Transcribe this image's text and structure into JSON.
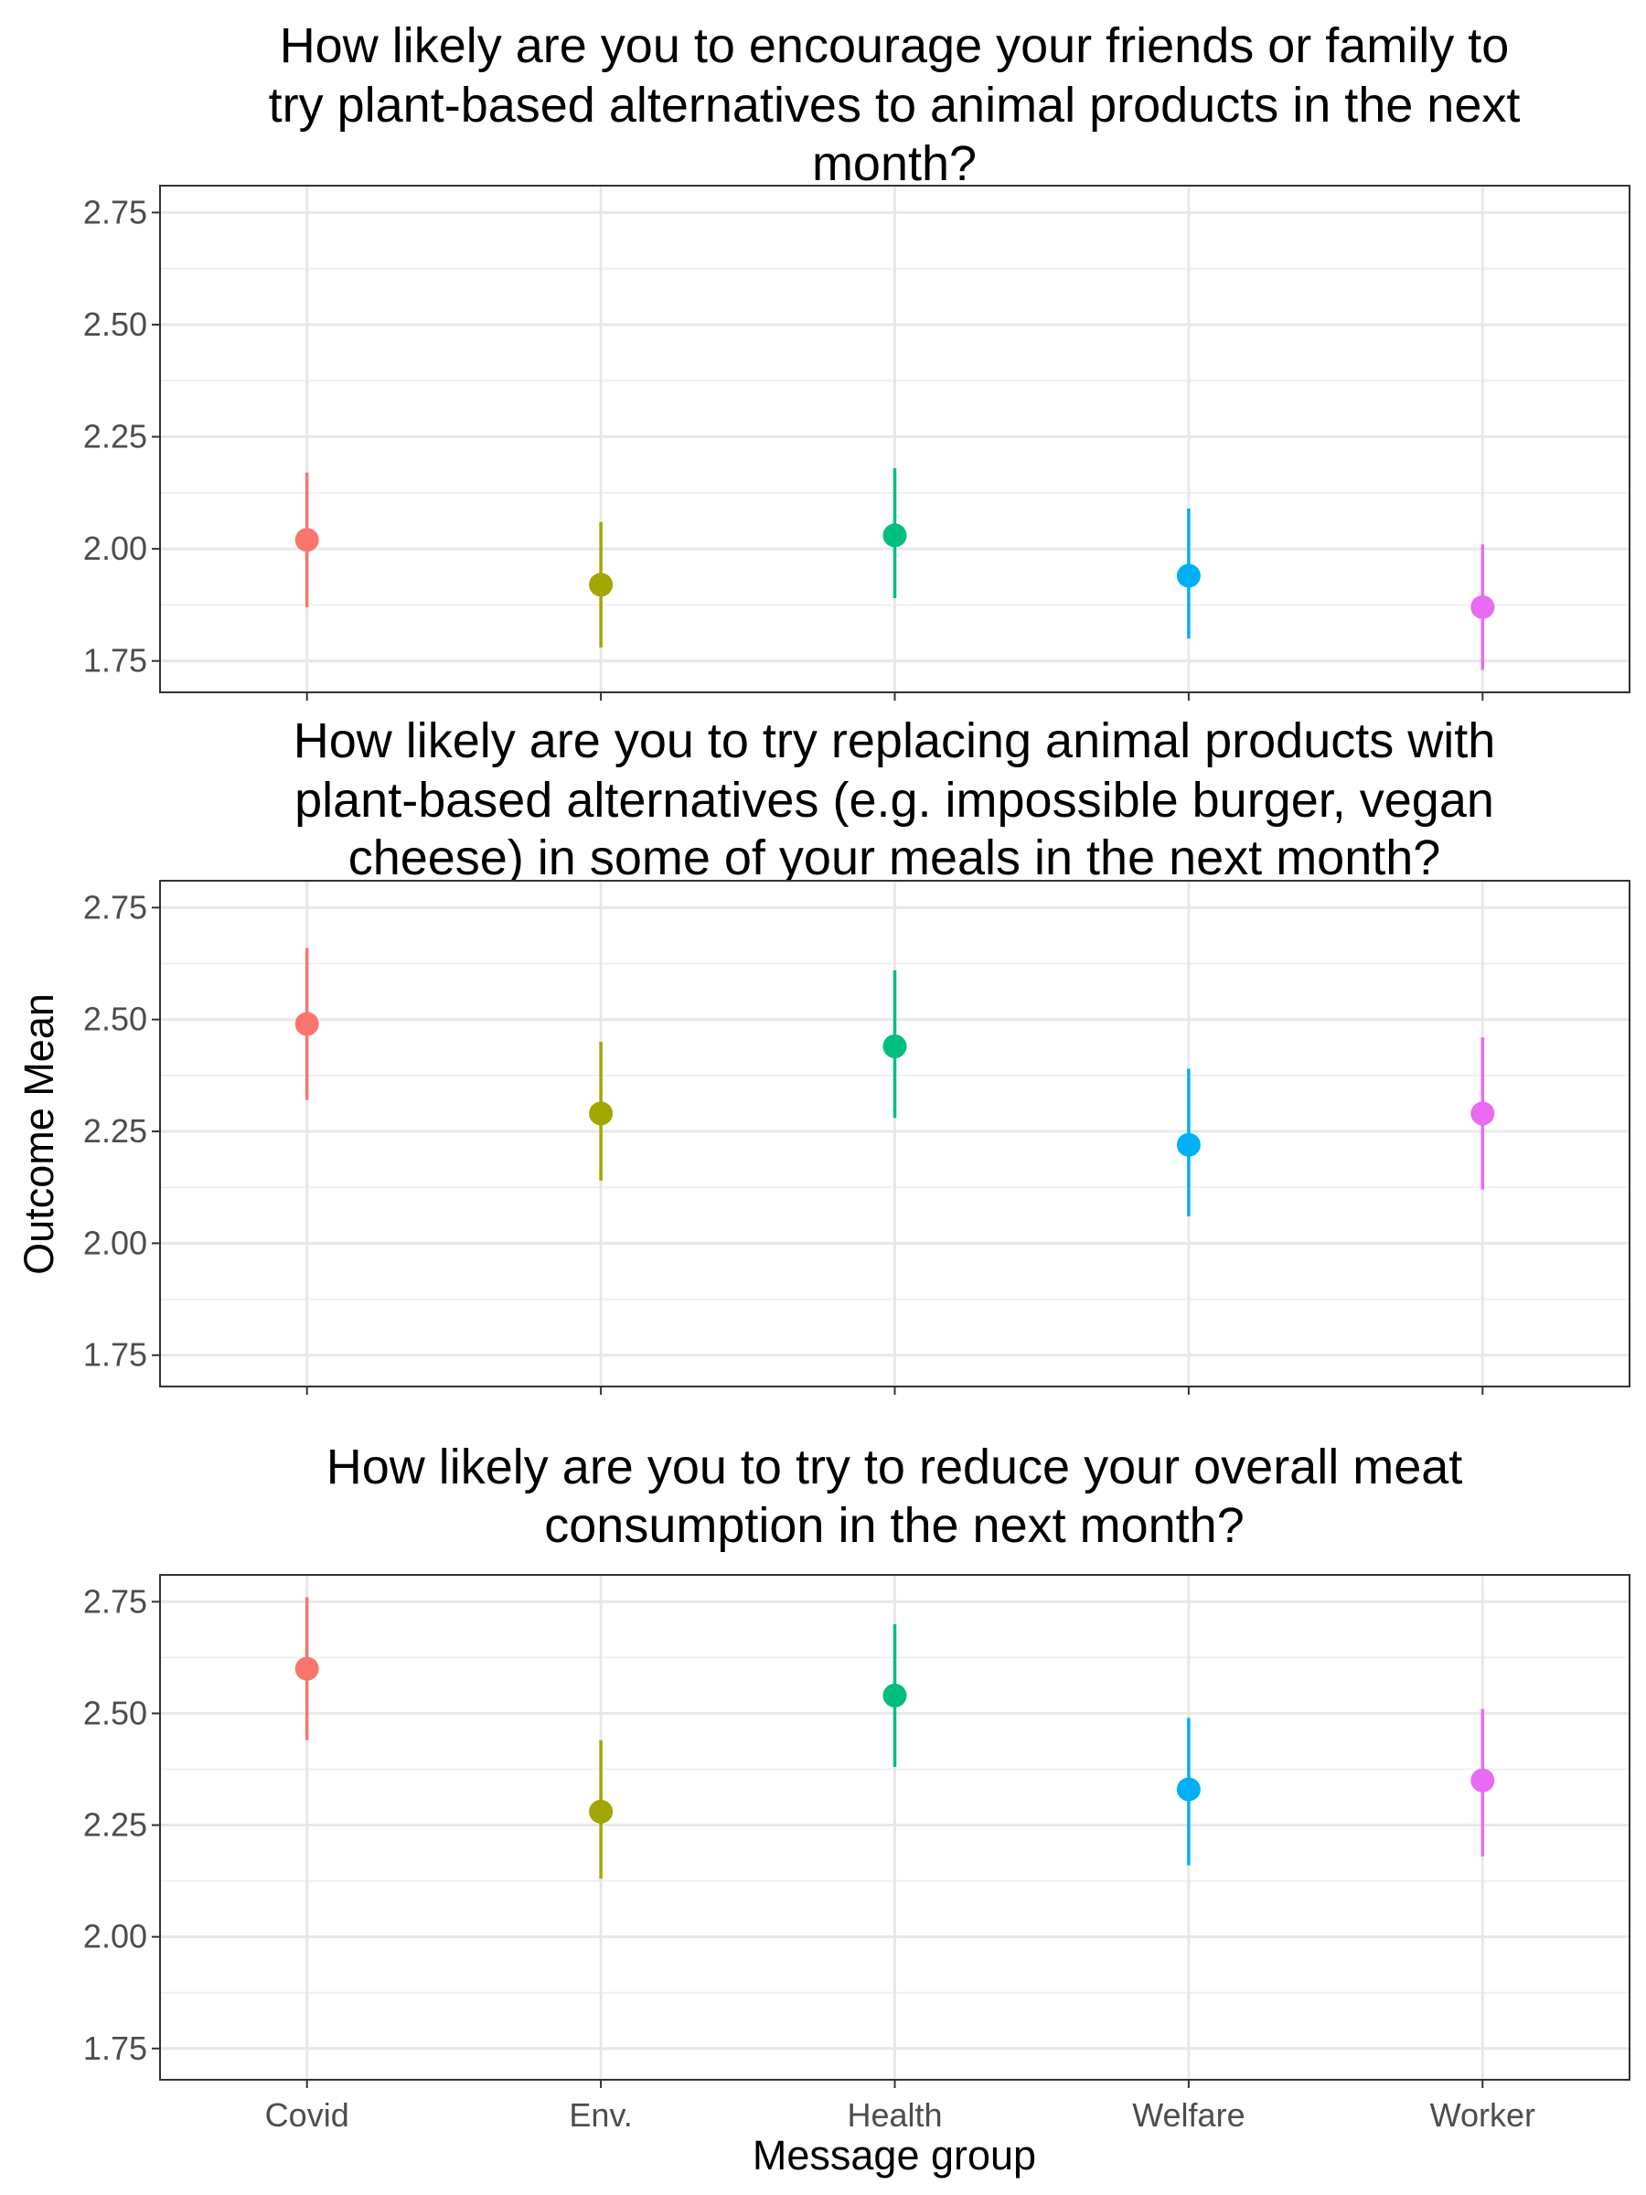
{
  "x_label": "Message group",
  "y_label": "Outcome Mean",
  "chart_data": [
    {
      "type": "scatter",
      "title": "How likely are you to encourage your friends or family to try plant-based alternatives to animal products in the next month?",
      "title_lines": [
        "How likely are you to encourage your friends or family to",
        "try plant-based alternatives to animal products in the next",
        "month?"
      ],
      "xlabel": "",
      "ylabel": "",
      "ylim": [
        1.68,
        2.81
      ],
      "yticks": [
        1.75,
        2.0,
        2.25,
        2.5,
        2.75
      ],
      "ytick_labels": [
        "1.75",
        "2.00",
        "2.25",
        "2.50",
        "2.75"
      ],
      "categories": [
        "Covid",
        "Env.",
        "Health",
        "Welfare",
        "Worker"
      ],
      "values": [
        2.02,
        1.92,
        2.03,
        1.94,
        1.87
      ],
      "lower": [
        1.87,
        1.78,
        1.89,
        1.8,
        1.73
      ],
      "upper": [
        2.17,
        2.06,
        2.18,
        2.09,
        2.01
      ],
      "colors": [
        "#F8766D",
        "#A3A500",
        "#00BF7D",
        "#00B0F6",
        "#E76BF3"
      ],
      "grid": true,
      "legend": "none"
    },
    {
      "type": "scatter",
      "title": "How likely are you to try replacing animal products with plant-based alternatives (e.g. impossible burger, vegan cheese) in some of your meals in the next month?",
      "title_lines": [
        "How likely are you to try replacing animal products with",
        "plant-based alternatives (e.g. impossible burger, vegan",
        "cheese) in some of your meals in the next month?"
      ],
      "xlabel": "",
      "ylabel": "Outcome Mean",
      "ylim": [
        1.68,
        2.81
      ],
      "yticks": [
        1.75,
        2.0,
        2.25,
        2.5,
        2.75
      ],
      "ytick_labels": [
        "1.75",
        "2.00",
        "2.25",
        "2.50",
        "2.75"
      ],
      "categories": [
        "Covid",
        "Env.",
        "Health",
        "Welfare",
        "Worker"
      ],
      "values": [
        2.49,
        2.29,
        2.44,
        2.22,
        2.29
      ],
      "lower": [
        2.32,
        2.14,
        2.28,
        2.06,
        2.12
      ],
      "upper": [
        2.66,
        2.45,
        2.61,
        2.39,
        2.46
      ],
      "colors": [
        "#F8766D",
        "#A3A500",
        "#00BF7D",
        "#00B0F6",
        "#E76BF3"
      ],
      "grid": true,
      "legend": "none"
    },
    {
      "type": "scatter",
      "title": "How likely are you to try to reduce your overall meat consumption in the next month?",
      "title_lines": [
        "How likely are you to try to reduce your overall meat",
        "consumption in the next month?"
      ],
      "xlabel": "Message group",
      "ylabel": "",
      "ylim": [
        1.68,
        2.81
      ],
      "yticks": [
        1.75,
        2.0,
        2.25,
        2.5,
        2.75
      ],
      "ytick_labels": [
        "1.75",
        "2.00",
        "2.25",
        "2.50",
        "2.75"
      ],
      "categories": [
        "Covid",
        "Env.",
        "Health",
        "Welfare",
        "Worker"
      ],
      "values": [
        2.6,
        2.28,
        2.54,
        2.33,
        2.35
      ],
      "lower": [
        2.44,
        2.13,
        2.38,
        2.16,
        2.18
      ],
      "upper": [
        2.76,
        2.44,
        2.7,
        2.49,
        2.51
      ],
      "colors": [
        "#F8766D",
        "#A3A500",
        "#00BF7D",
        "#00B0F6",
        "#E76BF3"
      ],
      "grid": true,
      "legend": "none"
    }
  ]
}
